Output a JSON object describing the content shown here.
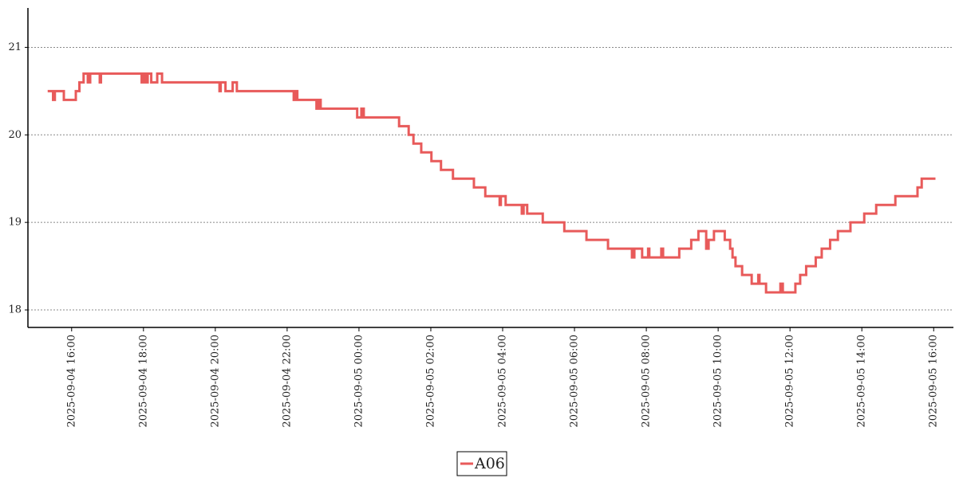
{
  "chart_data": {
    "type": "line",
    "drawstyle": "steps-post",
    "grid": true,
    "legend": "lower center",
    "xlim": [
      "2025-09-04 14:47",
      "2025-09-05 16:33"
    ],
    "ylim": [
      17.8,
      21.45
    ],
    "yticks": [
      18,
      19,
      20,
      21
    ],
    "xticks": [
      "2025-09-04 16:00",
      "2025-09-04 18:00",
      "2025-09-04 20:00",
      "2025-09-04 22:00",
      "2025-09-05 00:00",
      "2025-09-05 02:00",
      "2025-09-05 04:00",
      "2025-09-05 06:00",
      "2025-09-05 08:00",
      "2025-09-05 10:00",
      "2025-09-05 12:00",
      "2025-09-05 14:00",
      "2025-09-05 16:00"
    ],
    "x": [
      "2025-09-04 15:20",
      "2025-09-04 15:29",
      "2025-09-04 15:32",
      "2025-09-04 15:47",
      "2025-09-04 16:07",
      "2025-09-04 16:13",
      "2025-09-04 16:20",
      "2025-09-04 16:27",
      "2025-09-04 16:31",
      "2025-09-04 16:47",
      "2025-09-04 16:49",
      "2025-09-04 17:57",
      "2025-09-04 18:00",
      "2025-09-04 18:04",
      "2025-09-04 18:07",
      "2025-09-04 18:13",
      "2025-09-04 18:23",
      "2025-09-04 18:31",
      "2025-09-04 20:07",
      "2025-09-04 20:09",
      "2025-09-04 20:17",
      "2025-09-04 20:29",
      "2025-09-04 20:36",
      "2025-09-04 22:11",
      "2025-09-04 22:15",
      "2025-09-04 22:17",
      "2025-09-04 22:49",
      "2025-09-04 22:52",
      "2025-09-04 22:56",
      "2025-09-04 23:57",
      "2025-09-05 00:04",
      "2025-09-05 00:08",
      "2025-09-05 01:07",
      "2025-09-05 01:23",
      "2025-09-05 01:31",
      "2025-09-05 01:44",
      "2025-09-05 02:01",
      "2025-09-05 02:17",
      "2025-09-05 02:37",
      "2025-09-05 03:12",
      "2025-09-05 03:31",
      "2025-09-05 03:55",
      "2025-09-05 03:57",
      "2025-09-05 04:05",
      "2025-09-05 04:32",
      "2025-09-05 04:35",
      "2025-09-05 04:41",
      "2025-09-05 05:07",
      "2025-09-05 05:43",
      "2025-09-05 06:20",
      "2025-09-05 06:56",
      "2025-09-05 07:36",
      "2025-09-05 07:40",
      "2025-09-05 07:53",
      "2025-09-05 08:03",
      "2025-09-05 08:05",
      "2025-09-05 08:25",
      "2025-09-05 08:28",
      "2025-09-05 08:55",
      "2025-09-05 09:15",
      "2025-09-05 09:27",
      "2025-09-05 09:40",
      "2025-09-05 09:44",
      "2025-09-05 09:53",
      "2025-09-05 10:11",
      "2025-09-05 10:20",
      "2025-09-05 10:24",
      "2025-09-05 10:29",
      "2025-09-05 10:40",
      "2025-09-05 10:56",
      "2025-09-05 11:07",
      "2025-09-05 11:09",
      "2025-09-05 11:20",
      "2025-09-05 11:44",
      "2025-09-05 11:48",
      "2025-09-05 12:09",
      "2025-09-05 12:17",
      "2025-09-05 12:27",
      "2025-09-05 12:43",
      "2025-09-05 12:53",
      "2025-09-05 13:07",
      "2025-09-05 13:20",
      "2025-09-05 13:41",
      "2025-09-05 14:04",
      "2025-09-05 14:24",
      "2025-09-05 14:56",
      "2025-09-05 15:33",
      "2025-09-05 15:40",
      "2025-09-05 16:03"
    ],
    "series": [
      {
        "name": "A06",
        "color": "#e85a5a",
        "values": [
          20.5,
          20.4,
          20.5,
          20.4,
          20.5,
          20.6,
          20.7,
          20.6,
          20.7,
          20.6,
          20.7,
          20.6,
          20.7,
          20.6,
          20.7,
          20.6,
          20.7,
          20.6,
          20.5,
          20.6,
          20.5,
          20.6,
          20.5,
          20.4,
          20.5,
          20.4,
          20.3,
          20.4,
          20.3,
          20.2,
          20.3,
          20.2,
          20.1,
          20.0,
          19.9,
          19.8,
          19.7,
          19.6,
          19.5,
          19.4,
          19.3,
          19.2,
          19.3,
          19.2,
          19.1,
          19.2,
          19.1,
          19.0,
          18.9,
          18.8,
          18.7,
          18.6,
          18.7,
          18.6,
          18.7,
          18.6,
          18.7,
          18.6,
          18.7,
          18.8,
          18.9,
          18.7,
          18.8,
          18.9,
          18.8,
          18.7,
          18.6,
          18.5,
          18.4,
          18.3,
          18.4,
          18.3,
          18.2,
          18.3,
          18.2,
          18.3,
          18.4,
          18.5,
          18.6,
          18.7,
          18.8,
          18.9,
          19.0,
          19.1,
          19.2,
          19.3,
          19.4,
          19.5,
          19.5
        ]
      }
    ]
  }
}
